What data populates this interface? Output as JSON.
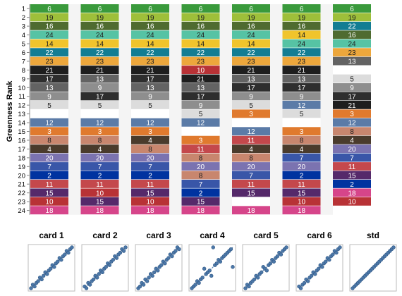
{
  "chart_data": {
    "type": "heatmap",
    "ylabel": "Greenness Rank",
    "ranks": [
      1,
      2,
      3,
      4,
      5,
      6,
      7,
      8,
      9,
      10,
      11,
      12,
      13,
      14,
      15,
      16,
      17,
      18,
      19,
      20,
      21,
      22,
      23,
      24
    ],
    "color_ids": {
      "1": "#000000",
      "2": "#0033a0",
      "3": "#e07a2e",
      "4": "#4a3b2c",
      "5": "#dcdcdc",
      "6": "#3a9a3c",
      "7": "#3956a8",
      "8": "#c8866e",
      "9": "#8e8e8e",
      "10": "#b83236",
      "11": "#c4484c",
      "12": "#5b7ba7",
      "13": "#636363",
      "14": "#f0c42c",
      "15": "#55296a",
      "16": "#4f6b30",
      "17": "#2e2e2e",
      "18": "#d6458a",
      "19": "#9ebf3a",
      "20": "#7b73b0",
      "21": "#1e1e1e",
      "22": "#137d93",
      "23": "#eda73c",
      "24": "#56c3a4"
    },
    "columns": [
      {
        "name": "card 1",
        "values": [
          6,
          19,
          16,
          24,
          14,
          22,
          23,
          21,
          17,
          13,
          9,
          5,
          null,
          12,
          3,
          8,
          4,
          20,
          7,
          2,
          11,
          15,
          10,
          18
        ]
      },
      {
        "name": "card 2",
        "values": [
          6,
          19,
          16,
          24,
          14,
          22,
          23,
          21,
          13,
          9,
          17,
          5,
          null,
          12,
          3,
          8,
          4,
          20,
          7,
          2,
          11,
          10,
          15,
          18
        ]
      },
      {
        "name": "card 3",
        "values": [
          6,
          19,
          16,
          24,
          14,
          22,
          23,
          21,
          17,
          13,
          9,
          5,
          null,
          12,
          3,
          4,
          8,
          20,
          7,
          2,
          11,
          15,
          10,
          18
        ]
      },
      {
        "name": "card 4",
        "values": [
          6,
          19,
          16,
          24,
          14,
          22,
          23,
          10,
          21,
          13,
          17,
          9,
          5,
          12,
          null,
          3,
          11,
          8,
          20,
          8,
          7,
          2,
          15,
          18
        ]
      },
      {
        "name": "card 5",
        "values": [
          6,
          19,
          16,
          24,
          14,
          22,
          23,
          21,
          13,
          17,
          9,
          5,
          3,
          null,
          12,
          11,
          4,
          8,
          20,
          7,
          11,
          15,
          null,
          18
        ]
      },
      {
        "name": "card 6",
        "values": [
          6,
          19,
          16,
          14,
          24,
          22,
          23,
          21,
          13,
          17,
          9,
          12,
          5,
          null,
          3,
          8,
          4,
          7,
          20,
          2,
          11,
          15,
          10,
          18
        ]
      },
      {
        "name": "std",
        "values": [
          6,
          19,
          22,
          16,
          24,
          23,
          13,
          null,
          5,
          9,
          17,
          21,
          3,
          12,
          8,
          4,
          20,
          7,
          11,
          15,
          2,
          18,
          10,
          null
        ]
      }
    ],
    "scatter_type": "scatter",
    "scatter_titles": [
      "card 1",
      "card 2",
      "card 3",
      "card 4",
      "card 5",
      "card 6",
      "std"
    ],
    "scatter_points": [
      [
        [
          1,
          1
        ],
        [
          2,
          3
        ],
        [
          3,
          2
        ],
        [
          4,
          4
        ],
        [
          5,
          5
        ],
        [
          6,
          7
        ],
        [
          7,
          6
        ],
        [
          8,
          8
        ],
        [
          9,
          10
        ],
        [
          10,
          9
        ],
        [
          11,
          11
        ],
        [
          12,
          12
        ],
        [
          13,
          14
        ],
        [
          14,
          13
        ],
        [
          15,
          15
        ],
        [
          16,
          16
        ],
        [
          17,
          18
        ],
        [
          18,
          17
        ],
        [
          19,
          19
        ],
        [
          20,
          20
        ],
        [
          21,
          22
        ],
        [
          22,
          21
        ],
        [
          23,
          23
        ],
        [
          24,
          24
        ]
      ],
      [
        [
          1,
          2
        ],
        [
          2,
          1
        ],
        [
          3,
          4
        ],
        [
          4,
          3
        ],
        [
          5,
          5
        ],
        [
          6,
          6
        ],
        [
          7,
          8
        ],
        [
          8,
          7
        ],
        [
          9,
          9
        ],
        [
          10,
          11
        ],
        [
          11,
          10
        ],
        [
          12,
          12
        ],
        [
          13,
          13
        ],
        [
          14,
          15
        ],
        [
          15,
          14
        ],
        [
          16,
          16
        ],
        [
          17,
          17
        ],
        [
          18,
          19
        ],
        [
          19,
          18
        ],
        [
          20,
          20
        ],
        [
          21,
          21
        ],
        [
          22,
          23
        ],
        [
          23,
          22
        ],
        [
          24,
          24
        ]
      ],
      [
        [
          1,
          1
        ],
        [
          2,
          2
        ],
        [
          3,
          4
        ],
        [
          4,
          3
        ],
        [
          5,
          6
        ],
        [
          6,
          5
        ],
        [
          7,
          7
        ],
        [
          8,
          9
        ],
        [
          9,
          8
        ],
        [
          10,
          10
        ],
        [
          11,
          12
        ],
        [
          12,
          11
        ],
        [
          13,
          13
        ],
        [
          14,
          14
        ],
        [
          15,
          16
        ],
        [
          16,
          15
        ],
        [
          17,
          17
        ],
        [
          18,
          18
        ],
        [
          19,
          20
        ],
        [
          20,
          19
        ],
        [
          21,
          21
        ],
        [
          22,
          22
        ],
        [
          23,
          24
        ],
        [
          24,
          23
        ]
      ],
      [
        [
          1,
          1
        ],
        [
          2,
          2
        ],
        [
          3,
          3
        ],
        [
          4,
          5
        ],
        [
          5,
          4
        ],
        [
          6,
          6
        ],
        [
          7,
          7
        ],
        [
          8,
          12
        ],
        [
          9,
          9
        ],
        [
          10,
          10
        ],
        [
          11,
          11
        ],
        [
          12,
          8
        ],
        [
          13,
          24
        ],
        [
          14,
          14
        ],
        [
          15,
          15
        ],
        [
          16,
          17
        ],
        [
          17,
          16
        ],
        [
          18,
          18
        ],
        [
          19,
          19
        ],
        [
          20,
          20
        ],
        [
          21,
          21
        ],
        [
          22,
          22
        ],
        [
          23,
          23
        ],
        [
          24,
          13
        ]
      ],
      [
        [
          1,
          1
        ],
        [
          2,
          3
        ],
        [
          3,
          2
        ],
        [
          4,
          4
        ],
        [
          5,
          5
        ],
        [
          6,
          6
        ],
        [
          7,
          8
        ],
        [
          8,
          7
        ],
        [
          9,
          9
        ],
        [
          10,
          10
        ],
        [
          11,
          13
        ],
        [
          12,
          12
        ],
        [
          13,
          11
        ],
        [
          14,
          14
        ],
        [
          15,
          15
        ],
        [
          16,
          17
        ],
        [
          17,
          16
        ],
        [
          18,
          18
        ],
        [
          19,
          19
        ],
        [
          20,
          21
        ],
        [
          21,
          20
        ],
        [
          22,
          22
        ],
        [
          23,
          23
        ],
        [
          24,
          24
        ]
      ],
      [
        [
          1,
          2
        ],
        [
          2,
          1
        ],
        [
          3,
          3
        ],
        [
          4,
          4
        ],
        [
          5,
          6
        ],
        [
          6,
          5
        ],
        [
          7,
          7
        ],
        [
          8,
          8
        ],
        [
          9,
          10
        ],
        [
          10,
          9
        ],
        [
          11,
          11
        ],
        [
          12,
          12
        ],
        [
          13,
          14
        ],
        [
          14,
          13
        ],
        [
          15,
          15
        ],
        [
          16,
          16
        ],
        [
          17,
          18
        ],
        [
          18,
          17
        ],
        [
          19,
          19
        ],
        [
          20,
          20
        ],
        [
          21,
          22
        ],
        [
          22,
          21
        ],
        [
          23,
          23
        ],
        [
          24,
          24
        ]
      ],
      [
        [
          1,
          1
        ],
        [
          2,
          2
        ],
        [
          3,
          3
        ],
        [
          4,
          4
        ],
        [
          5,
          5
        ],
        [
          6,
          6
        ],
        [
          7,
          7
        ],
        [
          8,
          8
        ],
        [
          9,
          9
        ],
        [
          10,
          10
        ],
        [
          11,
          11
        ],
        [
          12,
          12
        ],
        [
          13,
          13
        ],
        [
          14,
          14
        ],
        [
          15,
          15
        ],
        [
          16,
          16
        ],
        [
          17,
          17
        ],
        [
          18,
          18
        ],
        [
          19,
          19
        ],
        [
          20,
          20
        ],
        [
          21,
          21
        ],
        [
          22,
          22
        ],
        [
          23,
          23
        ],
        [
          24,
          24
        ]
      ]
    ]
  }
}
